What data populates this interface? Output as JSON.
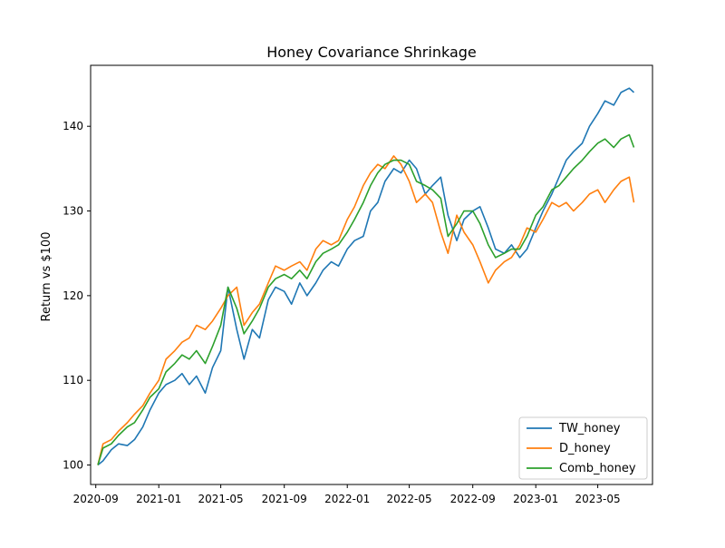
{
  "chart_data": {
    "type": "line",
    "title": "Honey Covariance Shrinkage",
    "xlabel": "",
    "ylabel": "Return vs $100",
    "x_range": [
      "2020-08-22",
      "2023-08-15"
    ],
    "y_range": [
      97.7,
      147.2
    ],
    "x_ticks": [
      "2020-09-01",
      "2021-01-01",
      "2021-05-01",
      "2021-09-01",
      "2022-01-01",
      "2022-05-01",
      "2022-09-01",
      "2023-01-01",
      "2023-05-01"
    ],
    "x_tick_labels": [
      "2020-09",
      "2021-01",
      "2021-05",
      "2021-09",
      "2022-01",
      "2022-05",
      "2022-09",
      "2023-01",
      "2023-05"
    ],
    "y_ticks": [
      100,
      110,
      120,
      130,
      140
    ],
    "y_tick_labels": [
      "100",
      "110",
      "120",
      "130",
      "140"
    ],
    "grid": false,
    "legend_position": "lower-right",
    "x": [
      "2020-09-05",
      "2020-09-15",
      "2020-10-01",
      "2020-10-15",
      "2020-11-01",
      "2020-11-15",
      "2020-12-01",
      "2020-12-15",
      "2021-01-01",
      "2021-01-15",
      "2021-02-01",
      "2021-02-15",
      "2021-03-01",
      "2021-03-15",
      "2021-04-01",
      "2021-04-15",
      "2021-05-01",
      "2021-05-15",
      "2021-06-01",
      "2021-06-15",
      "2021-07-01",
      "2021-07-15",
      "2021-08-01",
      "2021-08-15",
      "2021-09-01",
      "2021-09-15",
      "2021-10-01",
      "2021-10-15",
      "2021-11-01",
      "2021-11-15",
      "2021-12-01",
      "2021-12-15",
      "2022-01-01",
      "2022-01-15",
      "2022-02-01",
      "2022-02-15",
      "2022-03-01",
      "2022-03-15",
      "2022-04-01",
      "2022-04-15",
      "2022-05-01",
      "2022-05-15",
      "2022-06-01",
      "2022-06-15",
      "2022-07-01",
      "2022-07-15",
      "2022-08-01",
      "2022-08-15",
      "2022-09-01",
      "2022-09-15",
      "2022-10-01",
      "2022-10-15",
      "2022-11-01",
      "2022-11-15",
      "2022-12-01",
      "2022-12-15",
      "2023-01-01",
      "2023-01-15",
      "2023-02-01",
      "2023-02-15",
      "2023-03-01",
      "2023-03-15",
      "2023-04-01",
      "2023-04-15",
      "2023-05-01",
      "2023-05-15",
      "2023-06-01",
      "2023-06-15",
      "2023-07-01",
      "2023-07-10"
    ],
    "series": [
      {
        "name": "TW_honey",
        "color": "#1f77b4",
        "values": [
          100.0,
          100.5,
          101.8,
          102.5,
          102.3,
          103.0,
          104.5,
          106.5,
          108.5,
          109.5,
          110.0,
          110.8,
          109.5,
          110.5,
          108.5,
          111.5,
          113.5,
          121.0,
          116.0,
          112.5,
          116.0,
          115.0,
          119.5,
          121.0,
          120.5,
          119.0,
          121.5,
          120.0,
          121.5,
          123.0,
          124.0,
          123.5,
          125.5,
          126.5,
          127.0,
          130.0,
          131.0,
          133.5,
          135.0,
          134.5,
          136.0,
          135.0,
          132.0,
          133.0,
          134.0,
          129.5,
          126.5,
          129.0,
          130.0,
          130.5,
          128.0,
          125.5,
          125.0,
          126.0,
          124.5,
          125.5,
          128.0,
          130.0,
          132.0,
          134.0,
          136.0,
          137.0,
          138.0,
          140.0,
          141.5,
          143.0,
          142.5,
          144.0,
          144.5,
          144.0
        ]
      },
      {
        "name": "D_honey",
        "color": "#ff7f0e",
        "values": [
          100.0,
          102.5,
          103.0,
          104.0,
          105.0,
          106.0,
          107.0,
          108.5,
          110.0,
          112.5,
          113.5,
          114.5,
          115.0,
          116.5,
          116.0,
          117.0,
          118.5,
          120.0,
          121.0,
          116.5,
          118.0,
          119.0,
          121.5,
          123.5,
          123.0,
          123.5,
          124.0,
          123.0,
          125.5,
          126.5,
          126.0,
          126.5,
          129.0,
          130.5,
          133.0,
          134.5,
          135.5,
          135.0,
          136.5,
          135.5,
          133.5,
          131.0,
          132.0,
          131.0,
          127.5,
          125.0,
          129.5,
          127.5,
          126.0,
          124.0,
          121.5,
          123.0,
          124.0,
          124.5,
          126.0,
          128.0,
          127.5,
          129.0,
          131.0,
          130.5,
          131.0,
          130.0,
          131.0,
          132.0,
          132.5,
          131.0,
          132.5,
          133.5,
          134.0,
          131.0
        ]
      },
      {
        "name": "Comb_honey",
        "color": "#2ca02c",
        "values": [
          100.0,
          102.0,
          102.5,
          103.5,
          104.5,
          105.0,
          106.5,
          108.0,
          109.0,
          111.0,
          112.0,
          113.0,
          112.5,
          113.5,
          112.0,
          114.0,
          116.5,
          121.0,
          118.5,
          115.5,
          117.0,
          118.5,
          121.0,
          122.0,
          122.5,
          122.0,
          123.0,
          122.0,
          124.0,
          125.0,
          125.5,
          126.0,
          127.5,
          129.0,
          131.0,
          133.0,
          134.5,
          135.5,
          136.0,
          136.0,
          135.5,
          133.5,
          133.0,
          132.5,
          131.5,
          127.0,
          128.5,
          130.0,
          130.0,
          128.5,
          126.0,
          124.5,
          125.0,
          125.5,
          125.5,
          127.0,
          129.5,
          130.5,
          132.5,
          133.0,
          134.0,
          135.0,
          136.0,
          137.0,
          138.0,
          138.5,
          137.5,
          138.5,
          139.0,
          137.5
        ]
      }
    ]
  }
}
